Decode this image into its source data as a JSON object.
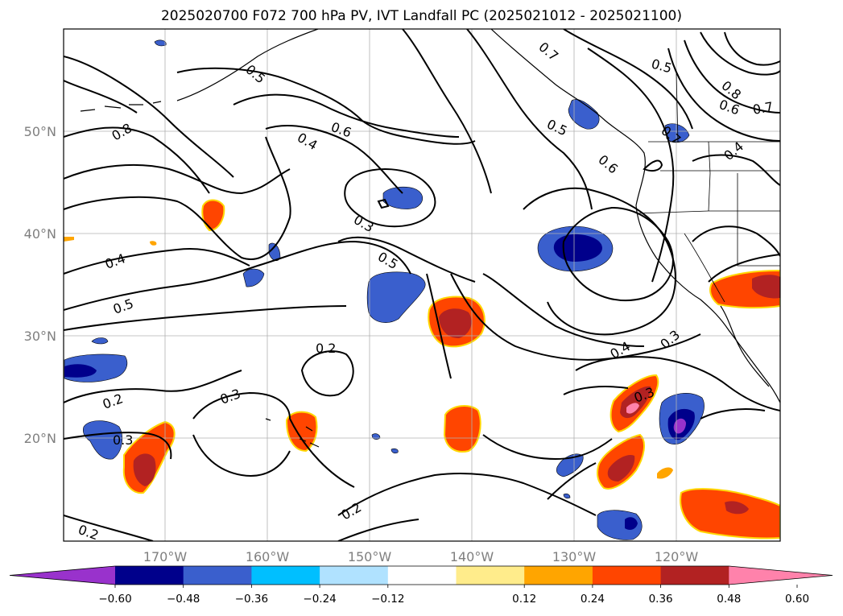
{
  "title": "2025020700 F072 700 hPa PV, IVT Landfall PC (2025021012 - 2025021100)",
  "map": {
    "lat_ticks": [
      "50°N",
      "40°N",
      "30°N",
      "20°N"
    ],
    "lon_ticks": [
      "170°W",
      "160°W",
      "150°W",
      "140°W",
      "130°W",
      "120°W"
    ],
    "contour_labels": [
      "0.7",
      "0.5",
      "0.8",
      "0.7",
      "0.6",
      "0.4",
      "0.6",
      "0.5",
      "0.7",
      "0.6",
      "0.5",
      "0.8",
      "0.4",
      "0.3",
      "0.4",
      "0.5",
      "0.5",
      "0.2",
      "0.4",
      "0.3",
      "0.3",
      "0.2",
      "0.3",
      "0.3",
      "0.2",
      "0.2"
    ]
  },
  "colorbar": {
    "labels": [
      "−0.60",
      "−0.48",
      "−0.36",
      "−0.24",
      "−0.12",
      "0.12",
      "0.24",
      "0.36",
      "0.48",
      "0.60"
    ],
    "colors": [
      "#9932cc",
      "#00008b",
      "#3a5fcd",
      "#00bfff",
      "#b0e2ff",
      "#ffffff",
      "#ffec8b",
      "#ffa500",
      "#ff4500",
      "#b22222",
      "#ff82ab"
    ]
  }
}
